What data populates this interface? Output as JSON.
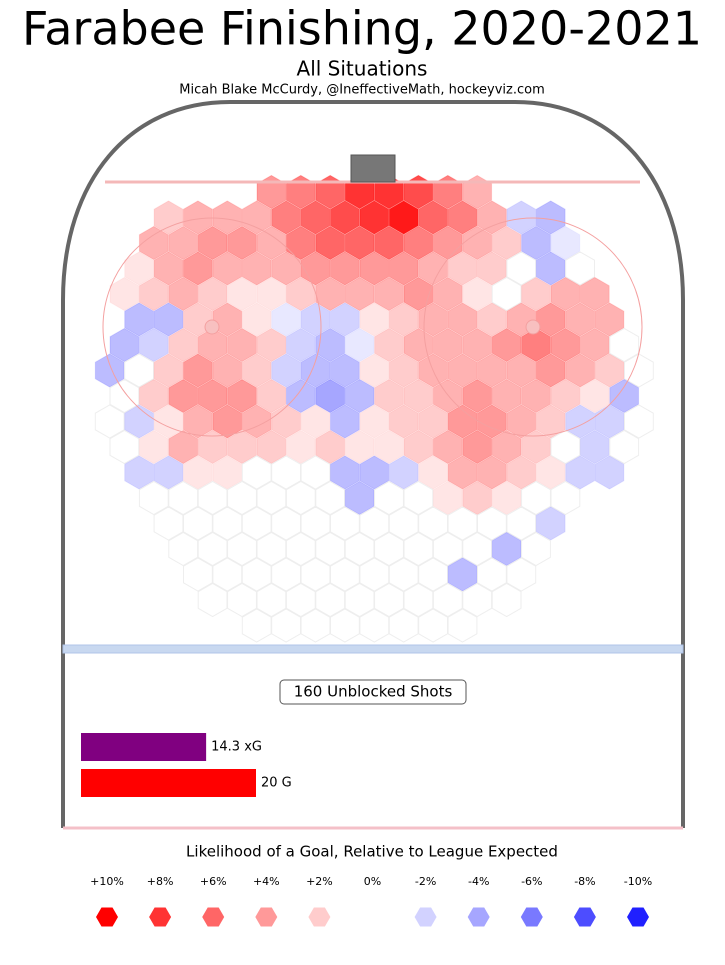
{
  "chart_data": [
    {
      "type": "hexbin",
      "title": "Farabee Finishing, 2020-2021",
      "subtitle": "All Situations",
      "credit": "Micah Blake McCurdy, @IneffectiveMath, hockeyviz.com",
      "annotation": "160 Unblocked Shots",
      "legend_title": "Likelihood of a Goal, Relative to League Expected",
      "color_positive": "#ff0000",
      "color_negative": "#2020ff",
      "legend_ticks": [
        {
          "value": 10,
          "label": "+10%"
        },
        {
          "value": 8,
          "label": "+8%"
        },
        {
          "value": 6,
          "label": "+6%"
        },
        {
          "value": 4,
          "label": "+4%"
        },
        {
          "value": 2,
          "label": "+2%"
        },
        {
          "value": 0,
          "label": "0%"
        },
        {
          "value": -2,
          "label": "-2%"
        },
        {
          "value": -4,
          "label": "-4%"
        },
        {
          "value": -6,
          "label": "-6%"
        },
        {
          "value": -8,
          "label": "-8%"
        },
        {
          "value": -10,
          "label": "-10%"
        }
      ],
      "values": [
        [
          null,
          null,
          null,
          null,
          null,
          null,
          4,
          5,
          6,
          8,
          8,
          7,
          5,
          3,
          null,
          null,
          null,
          null,
          null
        ],
        [
          null,
          null,
          2,
          3,
          3,
          3,
          5,
          6,
          7,
          8,
          9,
          6,
          5,
          3,
          -2,
          -3,
          null,
          null,
          null
        ],
        [
          null,
          null,
          3,
          3,
          4,
          4,
          3,
          5,
          6,
          6,
          6,
          5,
          4,
          3,
          2,
          -3,
          -1,
          null,
          null
        ],
        [
          null,
          1,
          3,
          4,
          3,
          3,
          3,
          4,
          4,
          4,
          4,
          3,
          2,
          2,
          0,
          -3,
          0,
          null,
          null
        ],
        [
          null,
          1,
          2,
          3,
          2,
          1,
          1,
          2,
          3,
          3,
          3,
          4,
          3,
          1,
          0,
          2,
          3,
          3,
          null
        ],
        [
          null,
          -3,
          -3,
          2,
          3,
          1,
          -1,
          -2,
          -2,
          1,
          2,
          3,
          3,
          2,
          3,
          4,
          3,
          3,
          null
        ],
        [
          null,
          -3,
          -2,
          2,
          3,
          3,
          2,
          -2,
          -3,
          -1,
          2,
          3,
          3,
          3,
          4,
          5,
          4,
          3,
          0
        ],
        [
          -3,
          0,
          2,
          4,
          3,
          2,
          -2,
          -3,
          -3,
          1,
          2,
          3,
          3,
          3,
          3,
          4,
          3,
          2,
          0
        ],
        [
          null,
          0,
          2,
          4,
          4,
          4,
          2,
          -3,
          -4,
          -3,
          2,
          2,
          3,
          4,
          3,
          3,
          2,
          1,
          -3
        ],
        [
          0,
          -2,
          1,
          3,
          4,
          3,
          2,
          1,
          -3,
          1,
          2,
          2,
          4,
          4,
          3,
          2,
          -2,
          -2,
          0
        ],
        [
          null,
          0,
          1,
          3,
          2,
          2,
          2,
          1,
          2,
          1,
          1,
          2,
          3,
          4,
          3,
          2,
          0,
          -2,
          0
        ],
        [
          null,
          -2,
          -2,
          1,
          1,
          0,
          0,
          0,
          -3,
          -3,
          -2,
          1,
          3,
          3,
          2,
          1,
          -2,
          -2,
          null
        ],
        [
          null,
          null,
          0,
          0,
          0,
          0,
          0,
          0,
          0,
          -3,
          0,
          0,
          1,
          2,
          1,
          0,
          0,
          null,
          null
        ],
        [
          null,
          null,
          0,
          0,
          0,
          0,
          0,
          0,
          0,
          0,
          0,
          0,
          0,
          0,
          0,
          -2,
          null,
          null,
          null
        ],
        [
          null,
          null,
          null,
          0,
          0,
          0,
          0,
          0,
          0,
          0,
          0,
          0,
          0,
          0,
          -3,
          0,
          null,
          null,
          null
        ],
        [
          null,
          null,
          null,
          0,
          0,
          0,
          0,
          0,
          0,
          0,
          0,
          0,
          -3,
          0,
          0,
          null,
          null,
          null,
          null
        ],
        [
          null,
          null,
          null,
          null,
          0,
          0,
          0,
          0,
          0,
          0,
          0,
          0,
          0,
          0,
          0,
          null,
          null,
          null,
          null
        ],
        [
          null,
          null,
          null,
          null,
          null,
          0,
          0,
          0,
          0,
          0,
          0,
          0,
          0,
          null,
          null,
          null,
          null,
          null,
          null
        ]
      ]
    },
    {
      "type": "bar",
      "values": [
        14.3,
        20
      ],
      "value_labels": [
        "14.3 xG",
        "20 G"
      ],
      "colors": [
        "#800080",
        "#ff0000"
      ]
    }
  ]
}
